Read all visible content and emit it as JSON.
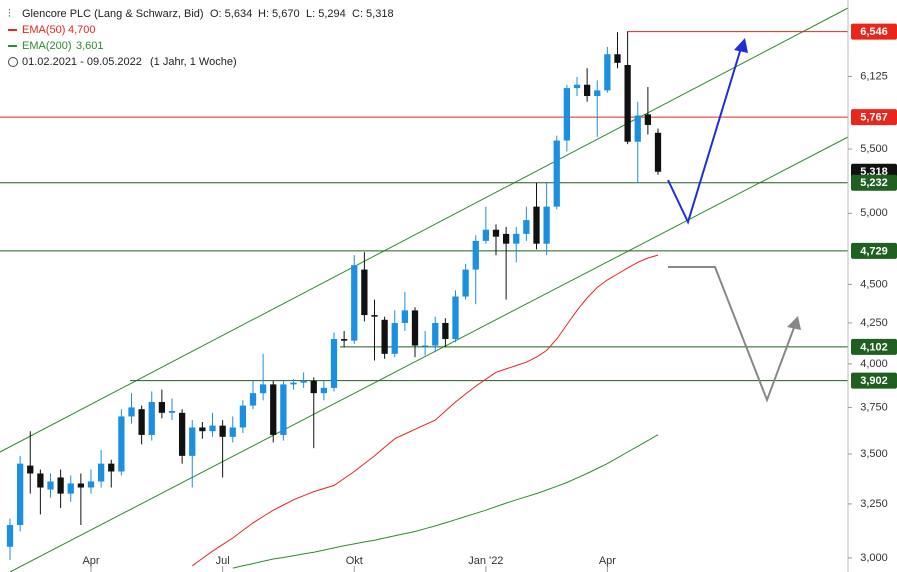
{
  "chart_data": {
    "type": "candlestick",
    "title": "Glencore PLC (Lang & Schwarz, Bid)",
    "ohlc_text": [
      "O: 5,634",
      "H: 5,670",
      "L: 5,294",
      "C: 5,318"
    ],
    "period": "01.02.2021 - 09.05.2022",
    "period_note": "(1 Jahr, 1 Woche)",
    "log_scale": true,
    "up_color": "#1b8fe0",
    "down_color": "#111111",
    "categories": [
      null,
      null,
      null,
      null,
      null,
      null,
      null,
      null,
      "Apr",
      null,
      null,
      null,
      null,
      null,
      null,
      null,
      null,
      null,
      null,
      null,
      null,
      "Jul",
      null,
      null,
      null,
      null,
      null,
      null,
      null,
      null,
      null,
      null,
      null,
      null,
      "Okt",
      null,
      null,
      null,
      null,
      null,
      null,
      null,
      null,
      null,
      null,
      null,
      null,
      "Jan '22",
      null,
      null,
      null,
      null,
      null,
      null,
      null,
      null,
      null,
      null,
      null,
      "Apr",
      null,
      null,
      null,
      null,
      null
    ],
    "open": [
      3050,
      3150,
      3440,
      3400,
      3320,
      3380,
      3300,
      3350,
      3330,
      3360,
      3450,
      3410,
      3700,
      3740,
      3600,
      3780,
      3720,
      3720,
      3490,
      3640,
      3620,
      3650,
      3590,
      3640,
      3760,
      3830,
      3880,
      3600,
      3880,
      3890,
      3900,
      3830,
      3860,
      4150,
      4140,
      4600,
      4300,
      4270,
      4060,
      4250,
      4330,
      4110,
      4110,
      4250,
      4150,
      4420,
      4600,
      4800,
      4880,
      4850,
      4780,
      4850,
      5050,
      4780,
      5050,
      5570,
      6020,
      6050,
      5950,
      6000,
      6330,
      6230,
      5560,
      5790,
      5634
    ],
    "high": [
      3180,
      3490,
      3620,
      3420,
      3400,
      3420,
      3390,
      3400,
      3420,
      3520,
      3470,
      3740,
      3830,
      3760,
      3840,
      3850,
      3800,
      3740,
      3680,
      3670,
      3720,
      3680,
      3700,
      3790,
      3900,
      4060,
      3900,
      3900,
      3910,
      3950,
      3920,
      3900,
      4190,
      4200,
      4700,
      4720,
      4400,
      4290,
      4330,
      4450,
      4350,
      4200,
      4290,
      4280,
      4460,
      4640,
      4840,
      5050,
      4920,
      4900,
      4900,
      5050,
      5230,
      5230,
      5610,
      6050,
      6120,
      6200,
      6090,
      6400,
      6540,
      6546,
      5900,
      6030,
      5670
    ],
    "low": [
      2990,
      3120,
      3300,
      3200,
      3280,
      3230,
      3260,
      3150,
      3300,
      3330,
      3330,
      3390,
      3660,
      3550,
      3570,
      3690,
      3680,
      3450,
      3330,
      3580,
      3590,
      3380,
      3560,
      3610,
      3740,
      3790,
      3560,
      3570,
      3850,
      3860,
      3530,
      3790,
      3840,
      4100,
      4120,
      4260,
      4020,
      4030,
      4040,
      4200,
      4040,
      4050,
      4070,
      4100,
      4130,
      4400,
      4370,
      4780,
      4700,
      4400,
      4650,
      4800,
      4740,
      4700,
      5030,
      5480,
      5950,
      5900,
      5600,
      5980,
      6200,
      5540,
      5230,
      5620,
      5294
    ],
    "close": [
      3150,
      3450,
      3400,
      3330,
      3360,
      3300,
      3350,
      3330,
      3360,
      3450,
      3410,
      3700,
      3750,
      3600,
      3780,
      3720,
      3730,
      3490,
      3640,
      3620,
      3650,
      3590,
      3640,
      3760,
      3830,
      3880,
      3600,
      3880,
      3890,
      3900,
      3830,
      3860,
      4150,
      4140,
      4630,
      4300,
      4290,
      4060,
      4250,
      4330,
      4110,
      4110,
      4250,
      4150,
      4420,
      4600,
      4800,
      4880,
      4830,
      4780,
      4850,
      4950,
      4780,
      5050,
      5570,
      6020,
      6050,
      5950,
      6000,
      6330,
      6250,
      5560,
      5780,
      5700,
      5318
    ],
    "series": [
      {
        "name": "EMA(50)",
        "value_label": "4,700",
        "color": "#e8261c",
        "values": [
          null,
          null,
          null,
          null,
          null,
          null,
          null,
          null,
          null,
          null,
          null,
          null,
          null,
          null,
          null,
          null,
          null,
          null,
          2965,
          2998,
          3030,
          3060,
          3090,
          3125,
          3160,
          3190,
          3220,
          3245,
          3270,
          3290,
          3310,
          3325,
          3340,
          3375,
          3410,
          3450,
          3490,
          3535,
          3580,
          3605,
          3630,
          3655,
          3680,
          3730,
          3780,
          3825,
          3870,
          3910,
          3950,
          3970,
          3990,
          4010,
          4040,
          4080,
          4150,
          4240,
          4330,
          4410,
          4480,
          4530,
          4570,
          4610,
          4650,
          4680,
          4700
        ]
      },
      {
        "name": "EMA(200)",
        "value_label": "3,601",
        "color": "#2e8b2e",
        "values": [
          null,
          null,
          null,
          null,
          null,
          null,
          null,
          null,
          null,
          null,
          null,
          null,
          null,
          null,
          null,
          null,
          null,
          null,
          null,
          null,
          null,
          null,
          2955,
          2965,
          2975,
          2985,
          2995,
          3002,
          3010,
          3018,
          3025,
          3035,
          3045,
          3055,
          3063,
          3072,
          3080,
          3090,
          3100,
          3110,
          3120,
          3133,
          3146,
          3160,
          3175,
          3190,
          3205,
          3220,
          3237,
          3254,
          3270,
          3285,
          3300,
          3318,
          3336,
          3355,
          3378,
          3400,
          3425,
          3450,
          3480,
          3510,
          3540,
          3570,
          3601
        ]
      }
    ],
    "levels": [
      {
        "value": 6546,
        "label": "6,546",
        "color": "#e8261c",
        "line": true
      },
      {
        "value": 5767,
        "label": "5,767",
        "color": "#e8261c",
        "line": true
      },
      {
        "value": 5318,
        "label": "5,318",
        "color": "#111111",
        "line": false
      },
      {
        "value": 5232,
        "label": "5,232",
        "color": "#1f5f1f",
        "line": true
      },
      {
        "value": 4729,
        "label": "4,729",
        "color": "#1f5f1f",
        "line": true
      },
      {
        "value": 4102,
        "label": "4,102",
        "color": "#1f5f1f",
        "line": true
      },
      {
        "value": 3902,
        "label": "3,902",
        "color": "#1f5f1f",
        "line": true
      }
    ],
    "ylim": [
      2938,
      6860
    ],
    "yticks": [
      {
        "value": 3000,
        "label": "3,000"
      },
      {
        "value": 3250,
        "label": "3,250"
      },
      {
        "value": 3500,
        "label": "3,500"
      },
      {
        "value": 3750,
        "label": "3,750"
      },
      {
        "value": 4000,
        "label": "4,000"
      },
      {
        "value": 4250,
        "label": "4,250"
      },
      {
        "value": 4500,
        "label": "4,500"
      },
      {
        "value": 5000,
        "label": "5,000"
      },
      {
        "value": 5500,
        "label": "5,500"
      },
      {
        "value": 6125,
        "label": "6,125"
      }
    ]
  }
}
